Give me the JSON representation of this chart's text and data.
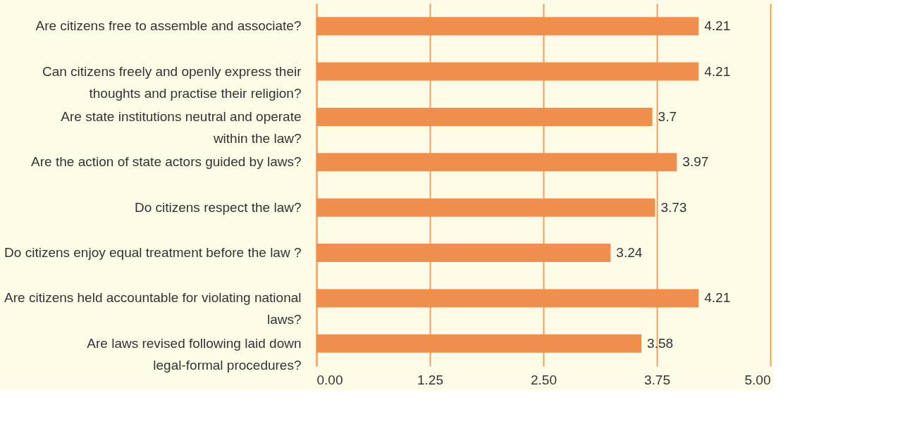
{
  "chart_data": {
    "type": "bar",
    "orientation": "horizontal",
    "categories": [
      "Are citizens free to assemble and associate?",
      "Can citizens freely and openly express their\nthoughts and practise their religion?",
      "Are state institutions neutral and operate\nwithin the law?",
      "Are the action of state actors guided by laws?",
      "Do citizens respect the law?",
      "Do citizens enjoy equal treatment before the law ?",
      "Are citizens held accountable for violating national\nlaws?",
      "Are laws revised following laid down\nlegal-formal procedures?"
    ],
    "values": [
      4.21,
      4.21,
      3.7,
      3.97,
      3.73,
      3.24,
      4.21,
      3.58
    ],
    "color": "#f08f4b",
    "xlim": [
      0,
      5
    ],
    "xticks": [
      {
        "value": 0,
        "label": "0.00"
      },
      {
        "value": 1.25,
        "label": "1.25"
      },
      {
        "value": 2.5,
        "label": "2.50"
      },
      {
        "value": 3.75,
        "label": "3.75"
      },
      {
        "value": 5,
        "label": "5.00"
      }
    ],
    "grid": "x",
    "data_labels": true
  }
}
